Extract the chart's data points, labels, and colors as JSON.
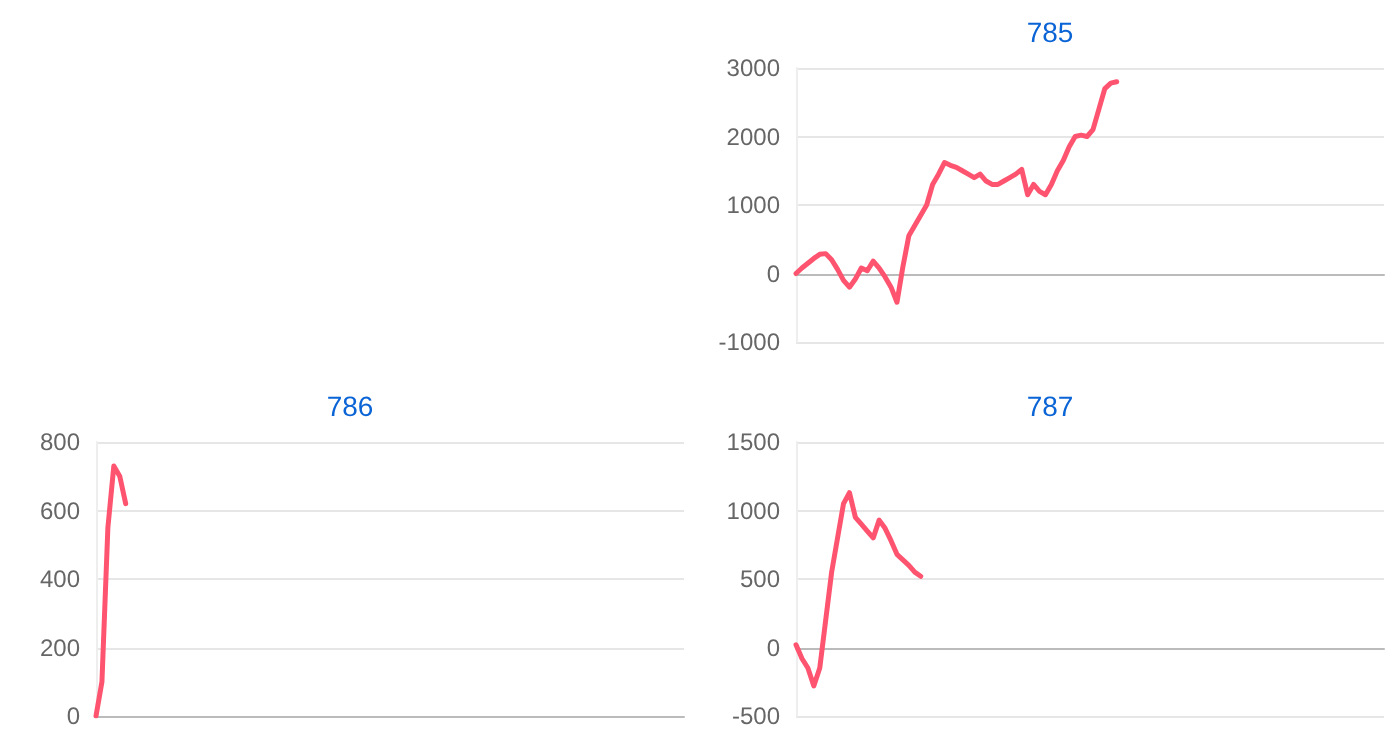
{
  "chart_data": [
    {
      "type": "line",
      "title": "785",
      "categories": [
        null,
        null,
        null,
        null,
        null,
        null,
        null,
        null,
        null,
        null,
        null,
        null,
        null,
        null,
        null,
        null,
        null,
        null,
        null,
        null,
        null,
        null,
        null,
        null,
        null,
        null,
        null,
        null,
        null,
        null,
        null,
        null,
        null,
        null,
        null,
        null,
        null,
        null,
        null,
        null,
        null,
        null,
        null,
        null,
        null,
        null,
        null,
        null,
        null,
        null,
        null,
        null,
        null,
        null,
        null,
        null,
        null,
        null,
        null,
        null,
        null,
        null,
        null,
        null,
        null,
        null,
        null,
        null,
        null,
        null,
        null,
        null,
        null,
        null,
        null,
        null,
        null,
        null,
        null,
        null,
        null,
        null,
        null,
        null,
        null,
        null,
        null,
        null,
        null,
        null,
        null,
        null,
        null,
        null,
        null,
        null,
        null,
        null,
        null,
        null
      ],
      "series": [
        {
          "color": "#ff5470",
          "values": [
            0,
            80,
            150,
            220,
            280,
            290,
            200,
            60,
            -100,
            -200,
            -80,
            80,
            40,
            180,
            80,
            -50,
            -200,
            -420,
            100,
            550,
            700,
            850,
            1000,
            1300,
            1450,
            1620,
            1580,
            1550,
            1500,
            1450,
            1400,
            1450,
            1350,
            1300,
            1300,
            1350,
            1400,
            1450,
            1520,
            1150,
            1300,
            1200,
            1150,
            1300,
            1500,
            1650,
            1850,
            2000,
            2020,
            2000,
            2100,
            2400,
            2700,
            2780,
            2800,
            null,
            null,
            null,
            null,
            null,
            null,
            null,
            null,
            null,
            null,
            null,
            null,
            null,
            null,
            null,
            null,
            null,
            null,
            null,
            null,
            null,
            null,
            null,
            null,
            null,
            null,
            null,
            null,
            null,
            null,
            null,
            null,
            null,
            null,
            null,
            null,
            null,
            null,
            null,
            null,
            null,
            null,
            null,
            null,
            null
          ]
        }
      ],
      "ylim": [
        -1000,
        3000
      ],
      "yticks": [
        -1000,
        0,
        1000,
        2000,
        3000
      ],
      "grid": "y",
      "tick_labels": "y",
      "line_style": "solid"
    },
    {
      "type": "line",
      "title": "786",
      "categories": [
        null,
        null,
        null,
        null,
        null,
        null,
        null,
        null,
        null,
        null,
        null,
        null,
        null,
        null,
        null,
        null,
        null,
        null,
        null,
        null,
        null,
        null,
        null,
        null,
        null,
        null,
        null,
        null,
        null,
        null,
        null,
        null,
        null,
        null,
        null,
        null,
        null,
        null,
        null,
        null,
        null,
        null,
        null,
        null,
        null,
        null,
        null,
        null,
        null,
        null,
        null,
        null,
        null,
        null,
        null,
        null,
        null,
        null,
        null,
        null,
        null,
        null,
        null,
        null,
        null,
        null,
        null,
        null,
        null,
        null,
        null,
        null,
        null,
        null,
        null,
        null,
        null,
        null,
        null,
        null,
        null,
        null,
        null,
        null,
        null,
        null,
        null,
        null,
        null,
        null,
        null,
        null,
        null,
        null,
        null,
        null,
        null,
        null,
        null,
        null
      ],
      "series": [
        {
          "color": "#ff5470",
          "values": [
            0,
            100,
            550,
            730,
            700,
            620,
            null,
            null,
            null,
            null,
            null,
            null,
            null,
            null,
            null,
            null,
            null,
            null,
            null,
            null,
            null,
            null,
            null,
            null,
            null,
            null,
            null,
            null,
            null,
            null,
            null,
            null,
            null,
            null,
            null,
            null,
            null,
            null,
            null,
            null,
            null,
            null,
            null,
            null,
            null,
            null,
            null,
            null,
            null,
            null,
            null,
            null,
            null,
            null,
            null,
            null,
            null,
            null,
            null,
            null,
            null,
            null,
            null,
            null,
            null,
            null,
            null,
            null,
            null,
            null,
            null,
            null,
            null,
            null,
            null,
            null,
            null,
            null,
            null,
            null,
            null,
            null,
            null,
            null,
            null,
            null,
            null,
            null,
            null,
            null,
            null,
            null,
            null,
            null,
            null,
            null,
            null,
            null,
            null,
            null
          ]
        }
      ],
      "ylim": [
        0,
        800
      ],
      "yticks": [
        0,
        200,
        400,
        600,
        800
      ],
      "grid": "y",
      "tick_labels": "y",
      "line_style": "solid"
    },
    {
      "type": "line",
      "title": "787",
      "categories": [
        null,
        null,
        null,
        null,
        null,
        null,
        null,
        null,
        null,
        null,
        null,
        null,
        null,
        null,
        null,
        null,
        null,
        null,
        null,
        null,
        null,
        null,
        null,
        null,
        null,
        null,
        null,
        null,
        null,
        null,
        null,
        null,
        null,
        null,
        null,
        null,
        null,
        null,
        null,
        null,
        null,
        null,
        null,
        null,
        null,
        null,
        null,
        null,
        null,
        null,
        null,
        null,
        null,
        null,
        null,
        null,
        null,
        null,
        null,
        null,
        null,
        null,
        null,
        null,
        null,
        null,
        null,
        null,
        null,
        null,
        null,
        null,
        null,
        null,
        null,
        null,
        null,
        null,
        null,
        null,
        null,
        null,
        null,
        null,
        null,
        null,
        null,
        null,
        null,
        null,
        null,
        null,
        null,
        null,
        null,
        null,
        null,
        null,
        null,
        null
      ],
      "series": [
        {
          "color": "#ff5470",
          "values": [
            20,
            -80,
            -150,
            -280,
            -150,
            200,
            550,
            800,
            1050,
            1130,
            950,
            900,
            850,
            800,
            930,
            870,
            780,
            680,
            640,
            600,
            550,
            520,
            null,
            null,
            null,
            null,
            null,
            null,
            null,
            null,
            null,
            null,
            null,
            null,
            null,
            null,
            null,
            null,
            null,
            null,
            null,
            null,
            null,
            null,
            null,
            null,
            null,
            null,
            null,
            null,
            null,
            null,
            null,
            null,
            null,
            null,
            null,
            null,
            null,
            null,
            null,
            null,
            null,
            null,
            null,
            null,
            null,
            null,
            null,
            null,
            null,
            null,
            null,
            null,
            null,
            null,
            null,
            null,
            null,
            null,
            null,
            null,
            null,
            null,
            null,
            null,
            null,
            null,
            null,
            null,
            null,
            null,
            null,
            null,
            null,
            null,
            null,
            null,
            null,
            null
          ]
        }
      ],
      "ylim": [
        -500,
        1500
      ],
      "yticks": [
        -500,
        0,
        500,
        1000,
        1500
      ],
      "grid": "y",
      "tick_labels": "y",
      "line_style": "solid"
    }
  ]
}
